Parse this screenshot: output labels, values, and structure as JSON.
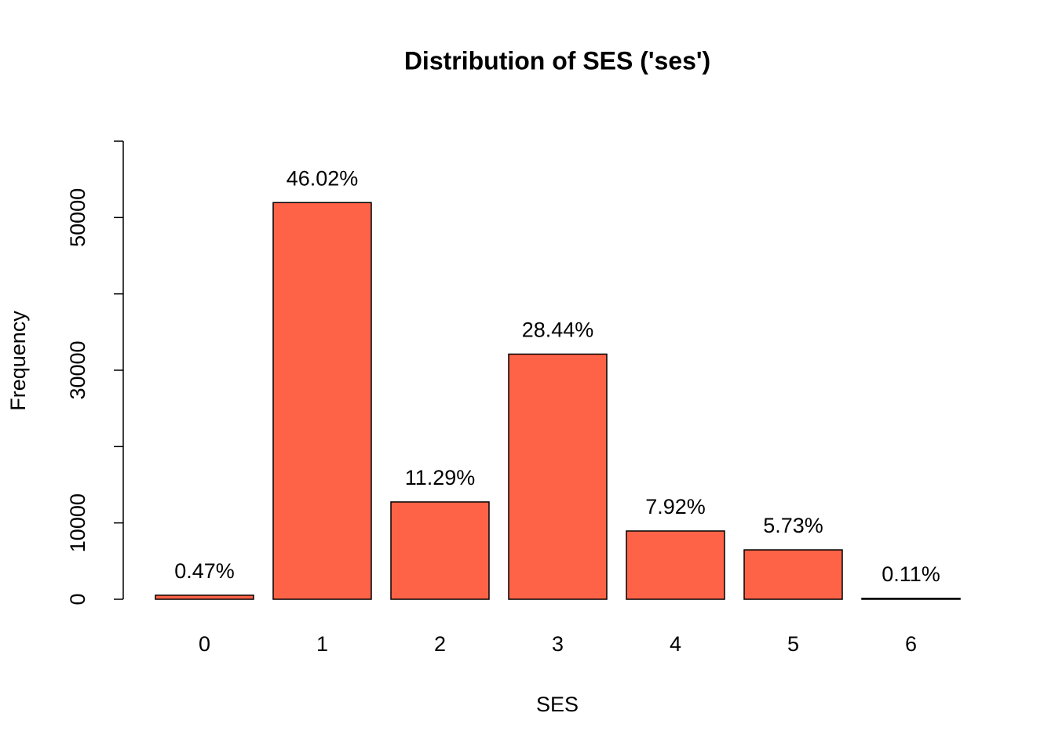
{
  "chart_data": {
    "type": "bar",
    "title": "Distribution of SES ('ses')",
    "x_label": "SES",
    "y_label": "Frequency",
    "categories": [
      "0",
      "1",
      "2",
      "3",
      "4",
      "5",
      "6"
    ],
    "values": [
      531,
      51956,
      12746,
      32109,
      8942,
      6469,
      124
    ],
    "percentages": [
      "0.47%",
      "46.02%",
      "11.29%",
      "28.44%",
      "7.92%",
      "5.73%",
      "0.11%"
    ],
    "color": "#ff6347",
    "ylim": [
      0,
      60000
    ],
    "yticks": [
      0,
      10000,
      {
        "value": 20000,
        "label": null
      },
      30000,
      {
        "value": 40000,
        "label": null
      },
      50000,
      {
        "value": 60000,
        "label": null
      }
    ]
  }
}
